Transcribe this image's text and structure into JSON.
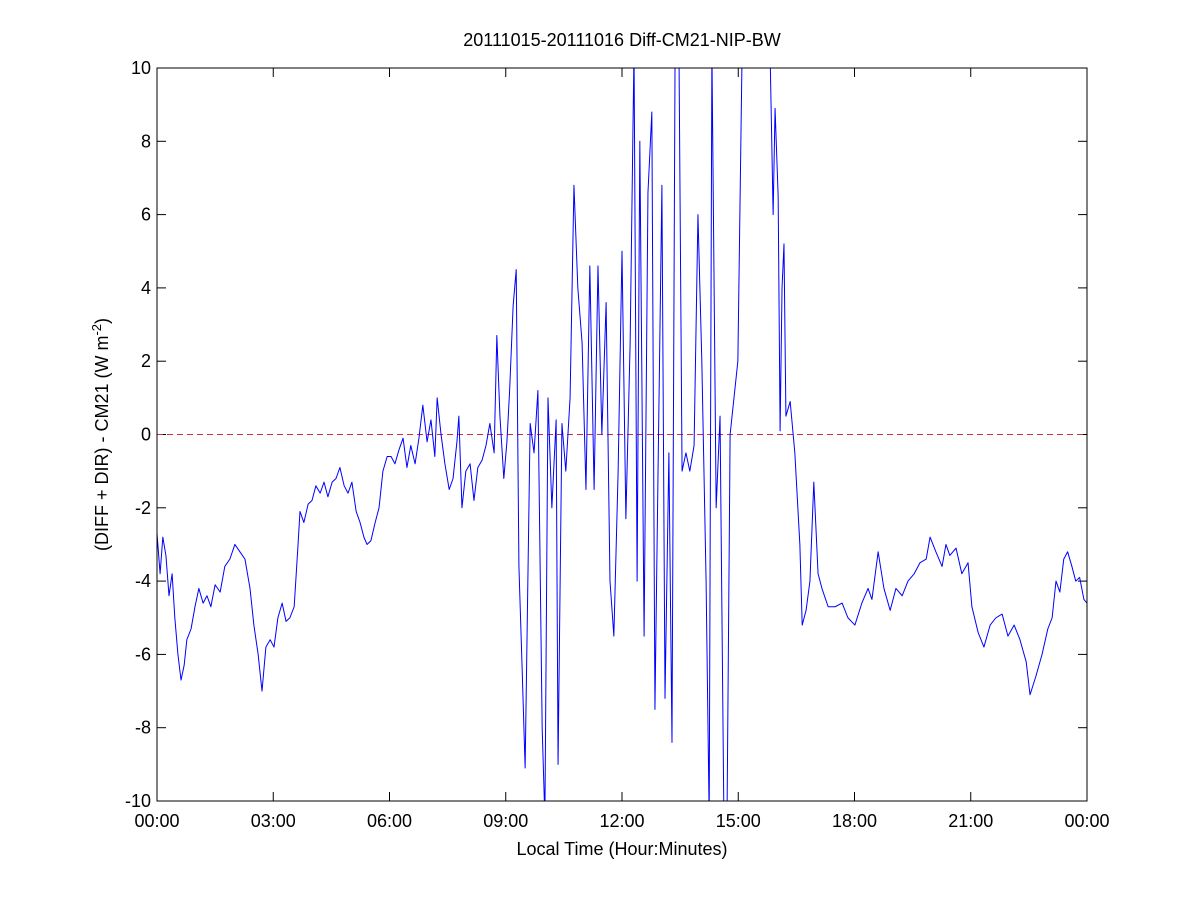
{
  "chart_data": {
    "type": "line",
    "title": "20111015-20111016 Diff-CM21-NIP-BW",
    "xlabel": "Local Time (Hour:Minutes)",
    "ylabel": {
      "text": "(DIFF + DIR) - CM21 (W m",
      "superscript": "-2",
      "suffix": ")"
    },
    "xlim": [
      0,
      24
    ],
    "xticks": [
      {
        "value": 0,
        "label": "00:00"
      },
      {
        "value": 3,
        "label": "03:00"
      },
      {
        "value": 6,
        "label": "06:00"
      },
      {
        "value": 9,
        "label": "09:00"
      },
      {
        "value": 12,
        "label": "12:00"
      },
      {
        "value": 15,
        "label": "15:00"
      },
      {
        "value": 18,
        "label": "18:00"
      },
      {
        "value": 21,
        "label": "21:00"
      },
      {
        "value": 24,
        "label": "00:00"
      }
    ],
    "ylim": [
      -10,
      10
    ],
    "yticks": [
      -10,
      -8,
      -6,
      -4,
      -2,
      0,
      2,
      4,
      6,
      8,
      10
    ],
    "grid": false,
    "hline": 0,
    "hline_color": "#cc3333",
    "x": [
      0,
      0.08,
      0.15,
      0.23,
      0.31,
      0.39,
      0.46,
      0.54,
      0.62,
      0.7,
      0.77,
      0.88,
      0.98,
      1.08,
      1.19,
      1.29,
      1.39,
      1.5,
      1.63,
      1.75,
      1.88,
      2.01,
      2.14,
      2.27,
      2.4,
      2.5,
      2.61,
      2.71,
      2.81,
      2.92,
      3.02,
      3.12,
      3.23,
      3.33,
      3.43,
      3.54,
      3.64,
      3.69,
      3.79,
      3.9,
      4.0,
      4.1,
      4.21,
      4.31,
      4.41,
      4.52,
      4.62,
      4.72,
      4.83,
      4.93,
      5.03,
      5.14,
      5.24,
      5.34,
      5.42,
      5.52,
      5.63,
      5.73,
      5.83,
      5.94,
      6.04,
      6.14,
      6.25,
      6.35,
      6.45,
      6.55,
      6.66,
      6.76,
      6.86,
      6.97,
      7.07,
      7.17,
      7.23,
      7.33,
      7.43,
      7.54,
      7.64,
      7.74,
      7.79,
      7.87,
      7.97,
      8.08,
      8.18,
      8.28,
      8.39,
      8.49,
      8.59,
      8.7,
      8.77,
      8.85,
      8.95,
      9.03,
      9.1,
      9.19,
      9.27,
      9.34,
      9.42,
      9.5,
      9.63,
      9.73,
      9.83,
      9.94,
      10.01,
      10.09,
      10.19,
      10.3,
      10.35,
      10.45,
      10.55,
      10.66,
      10.76,
      10.86,
      10.97,
      11.07,
      11.17,
      11.28,
      11.38,
      11.48,
      11.59,
      11.69,
      11.79,
      11.9,
      12.0,
      12.1,
      12.21,
      12.31,
      12.39,
      12.46,
      12.57,
      12.67,
      12.77,
      12.85,
      12.93,
      13.03,
      13.11,
      13.21,
      13.29,
      13.37,
      13.47,
      13.55,
      13.65,
      13.75,
      13.86,
      13.96,
      14.06,
      14.17,
      14.25,
      14.32,
      14.43,
      14.53,
      14.63,
      14.71,
      14.79,
      14.89,
      14.99,
      15.1,
      15.3,
      15.56,
      15.82,
      15.9,
      15.95,
      16.03,
      16.08,
      16.13,
      16.18,
      16.23,
      16.34,
      16.46,
      16.59,
      16.65,
      16.75,
      16.85,
      16.95,
      17.06,
      17.16,
      17.32,
      17.5,
      17.68,
      17.83,
      18.01,
      18.19,
      18.35,
      18.45,
      18.61,
      18.76,
      18.92,
      19.07,
      19.23,
      19.38,
      19.54,
      19.69,
      19.85,
      19.95,
      20.1,
      20.26,
      20.36,
      20.46,
      20.62,
      20.77,
      20.93,
      21.03,
      21.19,
      21.34,
      21.5,
      21.65,
      21.81,
      21.96,
      22.12,
      22.27,
      22.43,
      22.53,
      22.68,
      22.84,
      22.99,
      23.1,
      23.2,
      23.3,
      23.4,
      23.5,
      23.61,
      23.71,
      23.81,
      23.92,
      24
    ],
    "series": [
      {
        "color": "#0000ff",
        "values": [
          -2.7,
          -3.8,
          -2.8,
          -3.3,
          -4.4,
          -3.8,
          -5.0,
          -6.0,
          -6.7,
          -6.3,
          -5.6,
          -5.3,
          -4.7,
          -4.2,
          -4.6,
          -4.4,
          -4.7,
          -4.1,
          -4.3,
          -3.6,
          -3.4,
          -3.0,
          -3.2,
          -3.4,
          -4.2,
          -5.2,
          -6.0,
          -7.0,
          -5.8,
          -5.6,
          -5.8,
          -5.0,
          -4.6,
          -5.1,
          -5.0,
          -4.7,
          -3.0,
          -2.1,
          -2.4,
          -1.9,
          -1.8,
          -1.4,
          -1.6,
          -1.3,
          -1.7,
          -1.3,
          -1.2,
          -0.9,
          -1.4,
          -1.6,
          -1.3,
          -2.1,
          -2.4,
          -2.8,
          -3.0,
          -2.9,
          -2.4,
          -2.0,
          -1.0,
          -0.6,
          -0.6,
          -0.8,
          -0.4,
          -0.1,
          -0.9,
          -0.3,
          -0.8,
          -0.1,
          0.8,
          -0.2,
          0.4,
          -0.6,
          1.0,
          0.0,
          -0.8,
          -1.5,
          -1.2,
          -0.2,
          0.5,
          -2.0,
          -1.0,
          -0.8,
          -1.8,
          -0.9,
          -0.7,
          -0.3,
          0.3,
          -0.5,
          2.7,
          0.5,
          -1.2,
          -0.2,
          1.2,
          3.5,
          4.5,
          -3.6,
          -6.3,
          -9.1,
          0.3,
          -0.5,
          1.2,
          -8.0,
          -10.5,
          1.0,
          -2.0,
          0.4,
          -9.0,
          0.3,
          -1.0,
          1.0,
          6.8,
          4.0,
          2.5,
          -1.5,
          4.6,
          -1.5,
          4.6,
          0.0,
          3.6,
          -4.0,
          -5.5,
          -1.0,
          5.0,
          -2.3,
          2.5,
          10.5,
          -4.0,
          8.0,
          -5.5,
          6.6,
          8.8,
          -7.5,
          -1.0,
          6.8,
          -7.2,
          -0.5,
          -8.4,
          10.5,
          10.5,
          -1.0,
          -0.5,
          -1.0,
          -0.3,
          6.0,
          2.0,
          -4.0,
          -10.5,
          10.5,
          -2.0,
          0.5,
          -10.5,
          -10.5,
          0.0,
          1.0,
          2.0,
          10.5,
          10.5,
          10.5,
          10.5,
          6.0,
          8.9,
          6.5,
          0.1,
          4.0,
          5.2,
          0.5,
          0.9,
          -0.5,
          -3.0,
          -5.2,
          -4.8,
          -4.0,
          -1.3,
          -3.8,
          -4.2,
          -4.7,
          -4.7,
          -4.6,
          -5.0,
          -5.2,
          -4.6,
          -4.2,
          -4.5,
          -3.2,
          -4.2,
          -4.8,
          -4.2,
          -4.4,
          -4.0,
          -3.8,
          -3.5,
          -3.4,
          -2.8,
          -3.2,
          -3.6,
          -3.0,
          -3.3,
          -3.1,
          -3.8,
          -3.5,
          -4.7,
          -5.4,
          -5.8,
          -5.2,
          -5.0,
          -4.9,
          -5.5,
          -5.2,
          -5.6,
          -6.2,
          -7.1,
          -6.6,
          -6.0,
          -5.3,
          -5.0,
          -4.0,
          -4.3,
          -3.4,
          -3.2,
          -3.6,
          -4.0,
          -3.9,
          -4.5,
          -4.6
        ]
      }
    ]
  }
}
